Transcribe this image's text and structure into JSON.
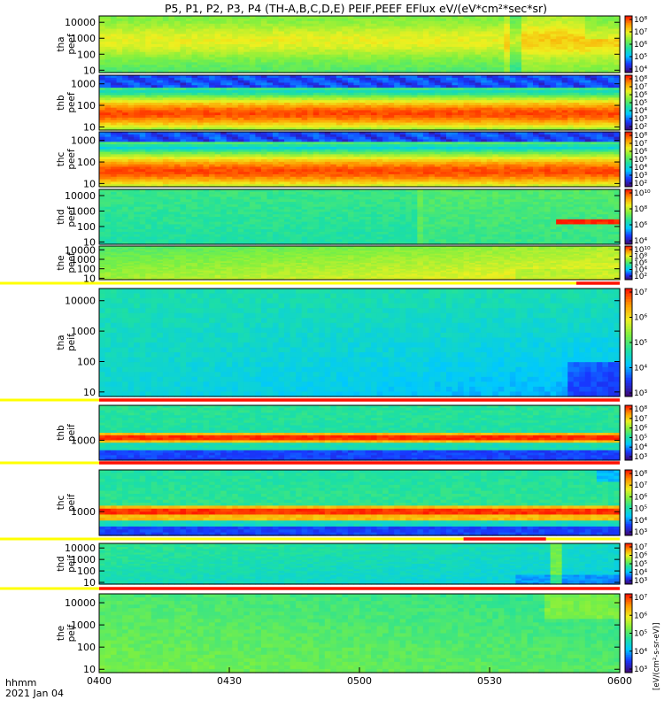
{
  "chart_data": {
    "type": "heatmap",
    "title": "P5, P1, P2, P3, P4 (TH-A,B,C,D,E) PEIF,PEEF EFlux eV/(eV*cm²*sec*sr)",
    "x": {
      "ticks": [
        "0400",
        "0430",
        "0500",
        "0530",
        "0600"
      ],
      "range": [
        "04:00",
        "06:00"
      ],
      "corner_label_top": "hhmm",
      "corner_label_bottom": "2021 Jan 04"
    },
    "colorbar_label": "[eV/(cm²-s-sr-eV)]",
    "colormap": [
      "#3c0a7a",
      "#1838ff",
      "#00c8ff",
      "#1fe0a0",
      "#7ef040",
      "#eef020",
      "#ff9a00",
      "#ff1800"
    ],
    "panels": [
      {
        "name": "tha-peef",
        "ylabel": [
          "tha",
          "peef"
        ],
        "yticks": [
          "10",
          "100",
          "1000",
          "10000"
        ],
        "log_range": [
          0.85,
          4.4
        ],
        "cb_ticks": [
          "10⁴",
          "10⁵",
          "10⁶",
          "10⁷",
          "10⁸"
        ],
        "flag_bar": false
      },
      {
        "name": "thb-peef",
        "ylabel": [
          "thb",
          "peef"
        ],
        "yticks": [
          "10",
          "100",
          "1000"
        ],
        "log_range": [
          0.85,
          3.4
        ],
        "cb_ticks": [
          "10²",
          "10³",
          "10⁴",
          "10⁵",
          "10⁶",
          "10⁷",
          "10⁸"
        ],
        "flag_bar": false
      },
      {
        "name": "thc-peef",
        "ylabel": [
          "thc",
          "peef"
        ],
        "yticks": [
          "10",
          "100",
          "1000"
        ],
        "log_range": [
          0.85,
          3.4
        ],
        "cb_ticks": [
          "10²",
          "10³",
          "10⁴",
          "10⁵",
          "10⁶",
          "10⁷",
          "10⁸"
        ],
        "flag_bar": false
      },
      {
        "name": "thd-peef",
        "ylabel": [
          "thd",
          "peef"
        ],
        "yticks": [
          "10",
          "100",
          "1000",
          "10000"
        ],
        "log_range": [
          0.85,
          4.4
        ],
        "cb_ticks": [
          "10⁴",
          "10⁶",
          "10⁸",
          "10¹⁰"
        ],
        "flag_bar": false
      },
      {
        "name": "the-peef",
        "ylabel": [
          "the",
          "peef"
        ],
        "yticks": [
          "10",
          "100",
          "1000",
          "10000"
        ],
        "log_range": [
          0.85,
          4.4
        ],
        "cb_ticks": [
          "10²",
          "10⁴",
          "10⁶",
          "10⁸",
          "10¹⁰"
        ],
        "flag_bar": true,
        "flag_segment": [
          "05:50",
          "06:00"
        ]
      },
      {
        "name": "tha-peif",
        "ylabel": [
          "tha",
          "peif"
        ],
        "yticks": [
          "10",
          "100",
          "1000",
          "10000"
        ],
        "log_range": [
          0.85,
          4.4
        ],
        "cb_ticks": [
          "10³",
          "10⁴",
          "10⁵",
          "10⁶",
          "10⁷"
        ],
        "flag_bar": true,
        "flag_segment": [
          "04:00",
          "06:00"
        ]
      },
      {
        "name": "thb-peif",
        "ylabel": [
          "thb",
          "peif"
        ],
        "yticks": [
          "1000"
        ],
        "log_range": [
          2.2,
          4.4
        ],
        "cb_ticks": [
          "10³",
          "10⁴",
          "10⁵",
          "10⁶",
          "10⁷",
          "10⁸"
        ],
        "flag_bar": true,
        "flag_segment": [
          "04:00",
          "06:00"
        ]
      },
      {
        "name": "thc-peif",
        "ylabel": [
          "thc",
          "peif"
        ],
        "yticks": [
          "1000"
        ],
        "log_range": [
          2.2,
          4.4
        ],
        "cb_ticks": [
          "10³",
          "10⁴",
          "10⁵",
          "10⁶",
          "10⁷",
          "10⁸"
        ],
        "flag_bar": true,
        "flag_segment": [
          "05:24",
          "05:43"
        ]
      },
      {
        "name": "thd-peif",
        "ylabel": [
          "thd",
          "peif"
        ],
        "yticks": [
          "10",
          "100",
          "1000",
          "10000"
        ],
        "log_range": [
          0.85,
          4.4
        ],
        "cb_ticks": [
          "10³",
          "10⁴",
          "10⁵",
          "10⁶",
          "10⁷"
        ],
        "flag_bar": true,
        "flag_segment": [
          "04:00",
          "06:00"
        ]
      },
      {
        "name": "the-peif",
        "ylabel": [
          "the",
          "peif"
        ],
        "yticks": [
          "10",
          "100",
          "1000",
          "10000"
        ],
        "log_range": [
          0.85,
          4.4
        ],
        "cb_ticks": [
          "10³",
          "10⁴",
          "10⁵",
          "10⁶",
          "10⁷"
        ],
        "flag_bar": false
      }
    ]
  }
}
